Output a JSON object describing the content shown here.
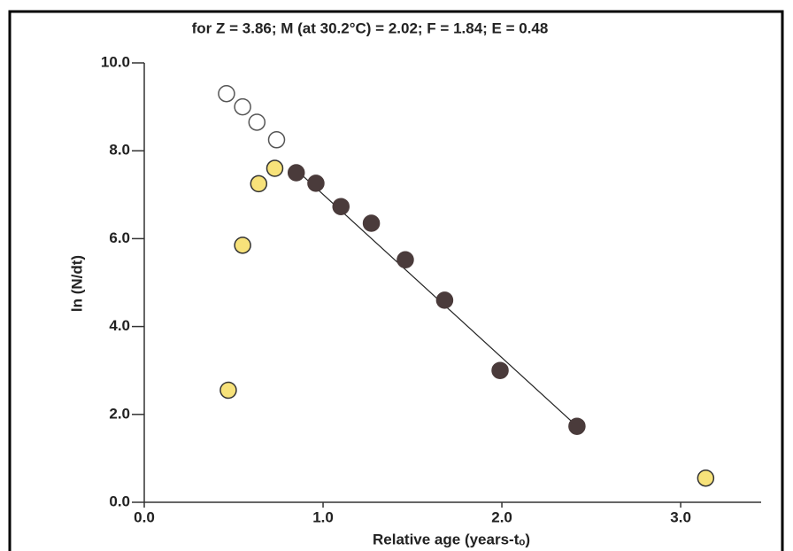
{
  "chart_data": {
    "type": "scatter",
    "title": "for Z = 3.86; M (at 30.2°C) = 2.02; F = 1.84; E = 0.48",
    "x_label": "Relative age (years-tₒ)",
    "y_label": "ln (N/dt)",
    "xlim": [
      0,
      3.45
    ],
    "ylim": [
      0,
      10
    ],
    "xticks": [
      {
        "value": 0,
        "label": "0.0"
      },
      {
        "value": 1,
        "label": "1.0"
      },
      {
        "value": 2,
        "label": "2.0"
      },
      {
        "value": 3,
        "label": "3.0"
      }
    ],
    "yticks": [
      {
        "value": 0,
        "label": "0.0"
      },
      {
        "value": 2,
        "label": "2.0"
      },
      {
        "value": 4,
        "label": "4.0"
      },
      {
        "value": 6,
        "label": "6.0"
      },
      {
        "value": 8,
        "label": "8.0"
      },
      {
        "value": 10,
        "label": "10.0"
      }
    ],
    "series": [
      {
        "color": "#ffffff",
        "stroke": "#555555",
        "x": [
          0.46,
          0.55,
          0.63,
          0.74
        ],
        "values": [
          9.3,
          9.0,
          8.65,
          8.25
        ]
      },
      {
        "color": "#f7e27a",
        "stroke": "#333333",
        "x": [
          0.47,
          0.55,
          0.64,
          0.73,
          3.14
        ],
        "values": [
          2.55,
          5.85,
          7.25,
          7.6,
          0.55
        ]
      },
      {
        "color": "#4a3b3b",
        "stroke": "#4a3b3b",
        "x": [
          0.85,
          0.96,
          1.1,
          1.27,
          1.46,
          1.68,
          1.99,
          2.42
        ],
        "values": [
          7.5,
          7.26,
          6.73,
          6.35,
          5.52,
          4.6,
          3.0,
          1.73
        ]
      }
    ],
    "fit_line": {
      "color": "#222222",
      "x": [
        0.83,
        2.42
      ],
      "values": [
        7.64,
        1.73
      ]
    }
  }
}
